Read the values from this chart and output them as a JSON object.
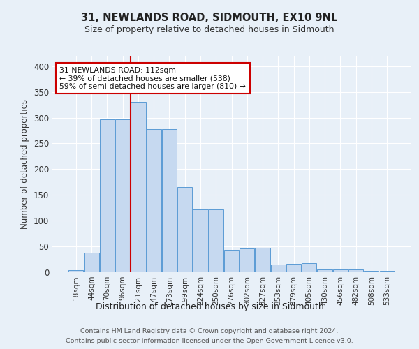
{
  "title": "31, NEWLANDS ROAD, SIDMOUTH, EX10 9NL",
  "subtitle": "Size of property relative to detached houses in Sidmouth",
  "xlabel": "Distribution of detached houses by size in Sidmouth",
  "ylabel": "Number of detached properties",
  "footer_line1": "Contains HM Land Registry data © Crown copyright and database right 2024.",
  "footer_line2": "Contains public sector information licensed under the Open Government Licence v3.0.",
  "bin_labels": [
    "18sqm",
    "44sqm",
    "70sqm",
    "96sqm",
    "121sqm",
    "147sqm",
    "173sqm",
    "199sqm",
    "224sqm",
    "250sqm",
    "276sqm",
    "302sqm",
    "327sqm",
    "353sqm",
    "379sqm",
    "405sqm",
    "430sqm",
    "456sqm",
    "482sqm",
    "508sqm",
    "533sqm"
  ],
  "bar_heights": [
    4,
    38,
    297,
    297,
    330,
    278,
    278,
    165,
    122,
    122,
    44,
    46,
    47,
    15,
    16,
    17,
    5,
    6,
    5,
    3,
    3
  ],
  "bar_color": "#c6d9f0",
  "bar_edge_color": "#5b9bd5",
  "pct_smaller": 39,
  "pct_smaller_n": 538,
  "pct_larger_semi": 59,
  "pct_larger_semi_n": 810,
  "vline_color": "#cc0000",
  "annotation_box_color": "#cc0000",
  "ylim": [
    0,
    420
  ],
  "yticks": [
    0,
    50,
    100,
    150,
    200,
    250,
    300,
    350,
    400
  ],
  "bg_color": "#e8f0f8",
  "plot_bg_color": "#e8f0f8",
  "grid_color": "#ffffff"
}
